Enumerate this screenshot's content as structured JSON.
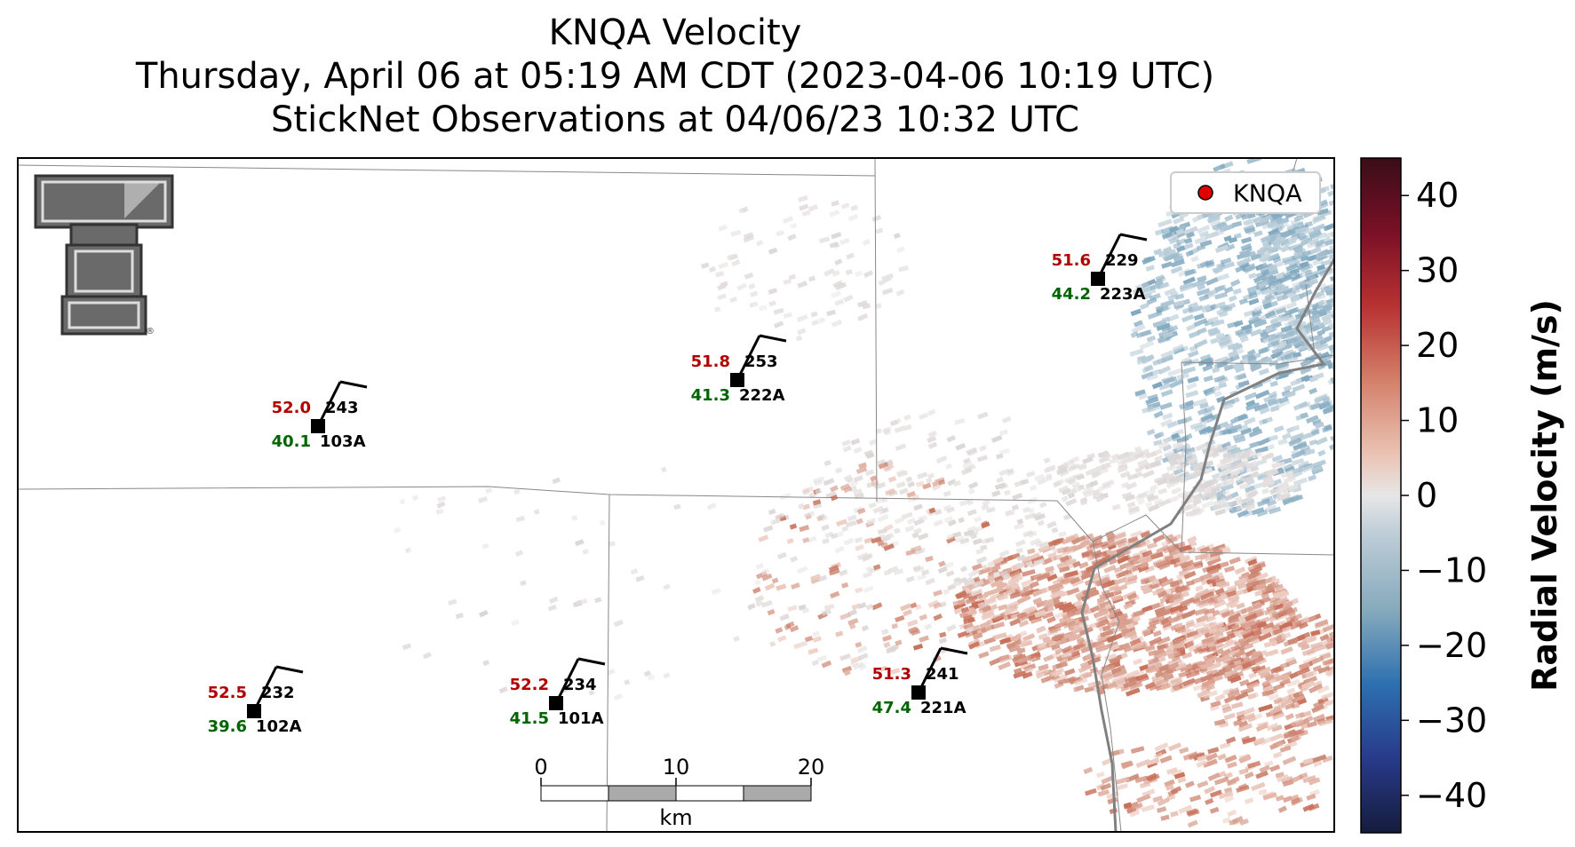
{
  "title": {
    "line1": "KNQA Velocity",
    "line2": "Thursday, April 06 at 05:19 AM CDT (2023-04-06 10:19 UTC)",
    "line3": "StickNet Observations at 04/06/23 10:32 UTC"
  },
  "legend": {
    "label": "KNQA",
    "marker_color": "#e00000"
  },
  "logo": {
    "icon": "texas-tech-double-t-logo",
    "text": "TT"
  },
  "stations": [
    {
      "id": "103A",
      "temp": "52.0",
      "dew": "40.1",
      "dir": "243"
    },
    {
      "id": "222A",
      "temp": "51.8",
      "dew": "41.3",
      "dir": "253"
    },
    {
      "id": "223A",
      "temp": "51.6",
      "dew": "44.2",
      "dir": "229"
    },
    {
      "id": "102A",
      "temp": "52.5",
      "dew": "39.6",
      "dir": "232"
    },
    {
      "id": "101A",
      "temp": "52.2",
      "dew": "41.5",
      "dir": "234"
    },
    {
      "id": "221A",
      "temp": "51.3",
      "dew": "47.4",
      "dir": "241"
    }
  ],
  "scalebar": {
    "ticks": [
      "0",
      "10",
      "20"
    ],
    "unit": "km"
  },
  "colorbar": {
    "label": "Radial Velocity (m/s)",
    "ticks": [
      "40",
      "30",
      "20",
      "10",
      "0",
      "−10",
      "−20",
      "−30",
      "−40"
    ],
    "range": [
      -45,
      45
    ]
  },
  "colors": {
    "temp": "#b00000",
    "dew": "#006400",
    "outbound": "#c8705a",
    "inbound": "#7fa6bd"
  }
}
